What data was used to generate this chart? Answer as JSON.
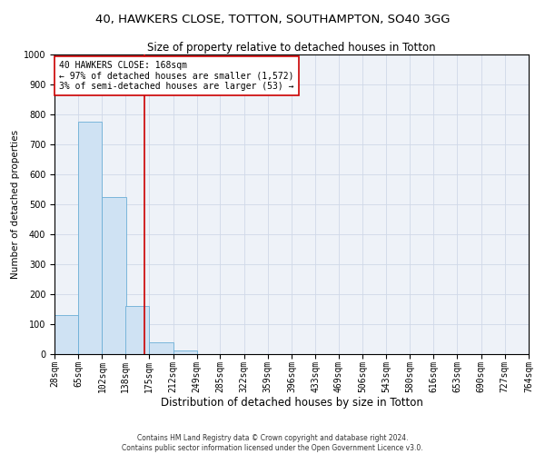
{
  "title": "40, HAWKERS CLOSE, TOTTON, SOUTHAMPTON, SO40 3GG",
  "subtitle": "Size of property relative to detached houses in Totton",
  "xlabel": "Distribution of detached houses by size in Totton",
  "ylabel": "Number of detached properties",
  "footer_line1": "Contains HM Land Registry data © Crown copyright and database right 2024.",
  "footer_line2": "Contains public sector information licensed under the Open Government Licence v3.0.",
  "bin_edges": [
    28,
    65,
    102,
    138,
    175,
    212,
    249,
    285,
    322,
    359,
    396,
    433,
    469,
    506,
    543,
    580,
    616,
    653,
    690,
    727,
    764
  ],
  "bin_labels": [
    "28sqm",
    "65sqm",
    "102sqm",
    "138sqm",
    "175sqm",
    "212sqm",
    "249sqm",
    "285sqm",
    "322sqm",
    "359sqm",
    "396sqm",
    "433sqm",
    "469sqm",
    "506sqm",
    "543sqm",
    "580sqm",
    "616sqm",
    "653sqm",
    "690sqm",
    "727sqm",
    "764sqm"
  ],
  "bar_heights": [
    130,
    775,
    525,
    160,
    40,
    12,
    0,
    0,
    0,
    0,
    0,
    0,
    0,
    0,
    0,
    0,
    0,
    0,
    0,
    0
  ],
  "bar_color": "#cfe2f3",
  "bar_edge_color": "#6baed6",
  "property_size": 168,
  "vline_color": "#cc0000",
  "annotation_text_line1": "40 HAWKERS CLOSE: 168sqm",
  "annotation_text_line2": "← 97% of detached houses are smaller (1,572)",
  "annotation_text_line3": "3% of semi-detached houses are larger (53) →",
  "annotation_box_color": "#cc0000",
  "annotation_bg": "#ffffff",
  "ylim": [
    0,
    1000
  ],
  "grid_color": "#d0d8e8",
  "background_color": "#eef2f8",
  "title_fontsize": 9.5,
  "subtitle_fontsize": 8.5,
  "xlabel_fontsize": 8.5,
  "ylabel_fontsize": 7.5,
  "tick_fontsize": 7,
  "annotation_fontsize": 7,
  "footer_fontsize": 5.5
}
